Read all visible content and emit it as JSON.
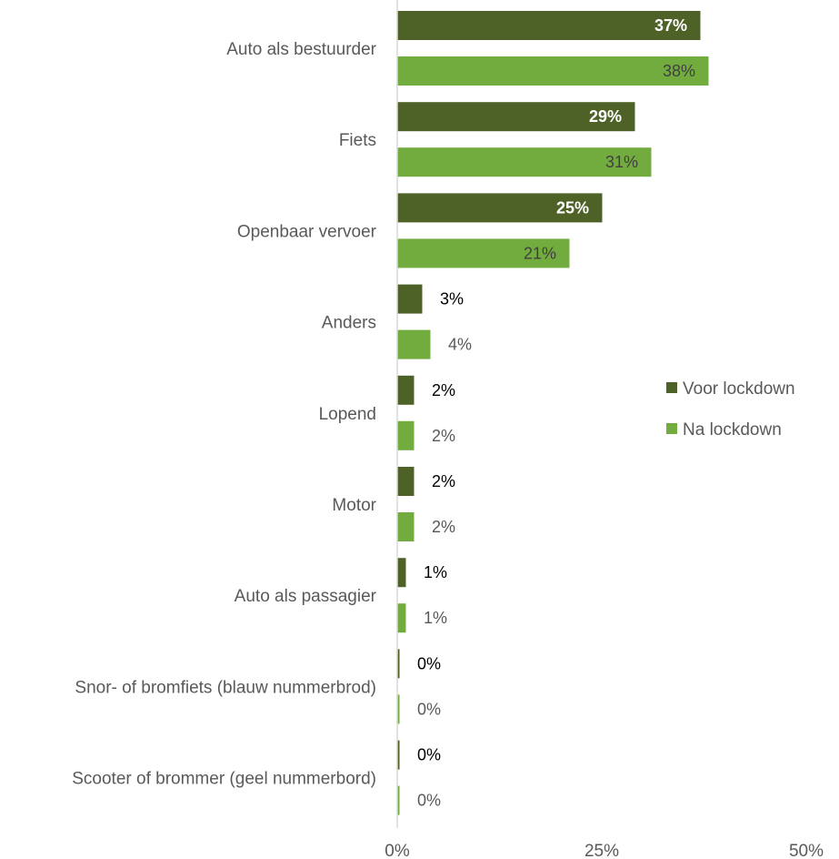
{
  "chart_data": {
    "type": "bar",
    "orientation": "horizontal",
    "categories": [
      "Auto als bestuurder",
      "Fiets",
      "Openbaar vervoer",
      "Anders",
      "Lopend",
      "Motor",
      "Auto als passagier",
      "Snor- of bromfiets (blauw nummerbrod)",
      "Scooter of brommer (geel nummerbord)"
    ],
    "series": [
      {
        "name": "Voor lockdown",
        "color": "#4e6228",
        "values": [
          37,
          29,
          25,
          3,
          2,
          2,
          1,
          0,
          0
        ],
        "labels": [
          "37%",
          "29%",
          "25%",
          "3%",
          "2%",
          "2%",
          "1%",
          "0%",
          "0%"
        ]
      },
      {
        "name": "Na lockdown",
        "color": "#72ac3e",
        "values": [
          38,
          31,
          21,
          4,
          2,
          2,
          1,
          0,
          0
        ],
        "labels": [
          "38%",
          "31%",
          "21%",
          "4%",
          "2%",
          "2%",
          "1%",
          "0%",
          "0%"
        ]
      }
    ],
    "x_ticks": [
      "0%",
      "25%",
      "50%"
    ],
    "xlim": [
      0,
      50
    ],
    "grid": false,
    "legend_position": "right"
  }
}
